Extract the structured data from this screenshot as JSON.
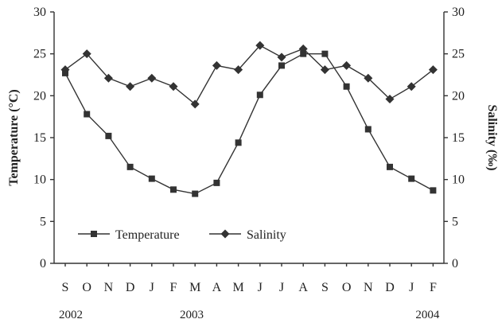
{
  "chart_data": {
    "type": "line",
    "categories": [
      "S",
      "O",
      "N",
      "D",
      "J",
      "F",
      "M",
      "A",
      "M",
      "J",
      "J",
      "A",
      "S",
      "O",
      "N",
      "D",
      "J",
      "F"
    ],
    "years": [
      {
        "label": "2002",
        "category_index": 0
      },
      {
        "label": "2003",
        "category_index": 5
      },
      {
        "label": "2004",
        "category_index": 17
      }
    ],
    "series": [
      {
        "name": "Temperature",
        "marker": "square",
        "axis": "left",
        "values": [
          22.7,
          17.8,
          15.2,
          11.5,
          10.1,
          8.8,
          8.3,
          9.6,
          14.4,
          20.1,
          23.6,
          25.0,
          25.0,
          21.1,
          16.0,
          11.5,
          10.1,
          8.7
        ]
      },
      {
        "name": "Salinity",
        "marker": "diamond",
        "axis": "right",
        "values": [
          23.1,
          25.0,
          22.1,
          21.1,
          22.1,
          21.1,
          19.0,
          23.6,
          23.1,
          26.0,
          24.6,
          25.6,
          23.1,
          23.6,
          22.1,
          19.6,
          21.1,
          23.1
        ]
      }
    ],
    "ylabel_left": "Temperature (°C)",
    "ylabel_right": "Salinity (‰)",
    "ylim_left": [
      0,
      30
    ],
    "ylim_right": [
      0,
      30
    ],
    "yticks": [
      0,
      5,
      10,
      15,
      20,
      25,
      30
    ],
    "grid": false,
    "legend": {
      "position": "bottom-left",
      "entries": [
        "Temperature",
        "Salinity"
      ]
    }
  }
}
